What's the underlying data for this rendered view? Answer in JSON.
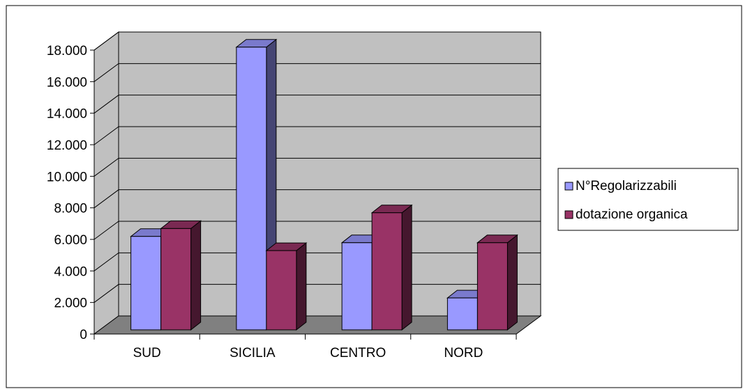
{
  "chart_data": {
    "type": "bar",
    "style": "3d-clustered-column",
    "categories": [
      "SUD",
      "SICILIA",
      "CENTRO",
      "NORD"
    ],
    "series": [
      {
        "name": "N°Regolarizzabili",
        "values": [
          6100,
          18100,
          5700,
          2200
        ],
        "color": "#9999ff"
      },
      {
        "name": "dotazione organica",
        "values": [
          6600,
          5200,
          7600,
          5700
        ],
        "color": "#993366"
      }
    ],
    "ylim": [
      0,
      18000
    ],
    "yticks": [
      "0",
      "2.000",
      "4.000",
      "6.000",
      "8.000",
      "10.000",
      "12.000",
      "14.000",
      "16.000",
      "18.000"
    ],
    "grid": true,
    "legend_position": "right",
    "colors": {
      "wall": "#c0c0c0",
      "floor": "#808080",
      "grid": "#000000"
    }
  }
}
